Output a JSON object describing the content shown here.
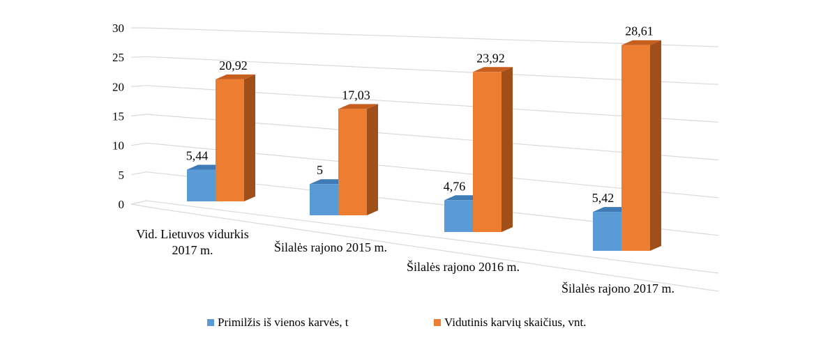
{
  "chart_data": {
    "type": "bar",
    "categories": [
      [
        "Vid. Lietuvos vidurkis",
        "2017 m."
      ],
      [
        "Šilalės rajono 2015 m."
      ],
      [
        "Šilalės rajono 2016 m."
      ],
      [
        "Šilalės rajono 2017 m."
      ]
    ],
    "series": [
      {
        "name": "Primilžis iš vienos karvės, t",
        "values": [
          5.44,
          5,
          4.76,
          5.42
        ],
        "labels": [
          "5,44",
          "5",
          "4,76",
          "5,42"
        ]
      },
      {
        "name": "Vidutinis karvių skaičius, vnt.",
        "values": [
          20.92,
          17.03,
          23.92,
          28.61
        ],
        "labels": [
          "20,92",
          "17,03",
          "23,92",
          "28,61"
        ]
      }
    ],
    "ylim": [
      0,
      30
    ],
    "yticks": [
      "0",
      "5",
      "10",
      "15",
      "20",
      "25",
      "30"
    ],
    "grid": true,
    "legend_position": "bottom",
    "colors": {
      "series1_front": "#5B9BD5",
      "series1_top": "#3F7BB5",
      "series1_side": "#2E6399",
      "series2_front": "#ED7D31",
      "series2_top": "#C65F1E",
      "series2_side": "#A14F1A",
      "grid": "#D9D9D9"
    }
  }
}
